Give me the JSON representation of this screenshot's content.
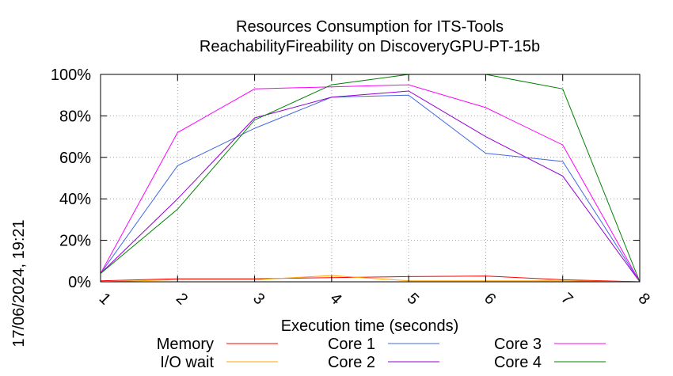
{
  "chart_data": {
    "type": "line",
    "title": "Resources Consumption for ITS-Tools",
    "subtitle": "ReachabilityFireability on DiscoveryGPU-PT-15b",
    "xlabel": "Execution time (seconds)",
    "ylabel": "",
    "side_label": "17/06/2024, 19:21",
    "x": [
      1,
      2,
      3,
      4,
      5,
      6,
      7,
      8
    ],
    "xlim": [
      1,
      8
    ],
    "ylim": [
      0,
      100
    ],
    "y_ticks": [
      "0%",
      "20%",
      "40%",
      "60%",
      "80%",
      "100%"
    ],
    "x_ticks": [
      "1",
      "2",
      "3",
      "4",
      "5",
      "6",
      "7",
      "8"
    ],
    "grid": true,
    "legend_position": "bottom",
    "series": [
      {
        "name": "Memory",
        "color": "#ff0000",
        "values": [
          0.5,
          1.5,
          1.5,
          2.0,
          2.5,
          2.8,
          1.0,
          0
        ]
      },
      {
        "name": "I/O wait",
        "color": "#ffa500",
        "values": [
          0,
          1.0,
          1.0,
          3.0,
          0.5,
          0.5,
          0.5,
          0
        ]
      },
      {
        "name": "Core 1",
        "color": "#4169e1",
        "values": [
          4,
          56,
          74,
          89,
          90,
          62,
          58,
          0
        ]
      },
      {
        "name": "Core 2",
        "color": "#9400d3",
        "values": [
          4,
          40,
          79,
          89,
          92,
          70,
          51,
          0
        ]
      },
      {
        "name": "Core 3",
        "color": "#ff00ff",
        "values": [
          4,
          72,
          93,
          94,
          95,
          84,
          66,
          0
        ]
      },
      {
        "name": "Core 4",
        "color": "#008000",
        "values": [
          4,
          35,
          78,
          95,
          100,
          100,
          93,
          0
        ]
      }
    ]
  }
}
